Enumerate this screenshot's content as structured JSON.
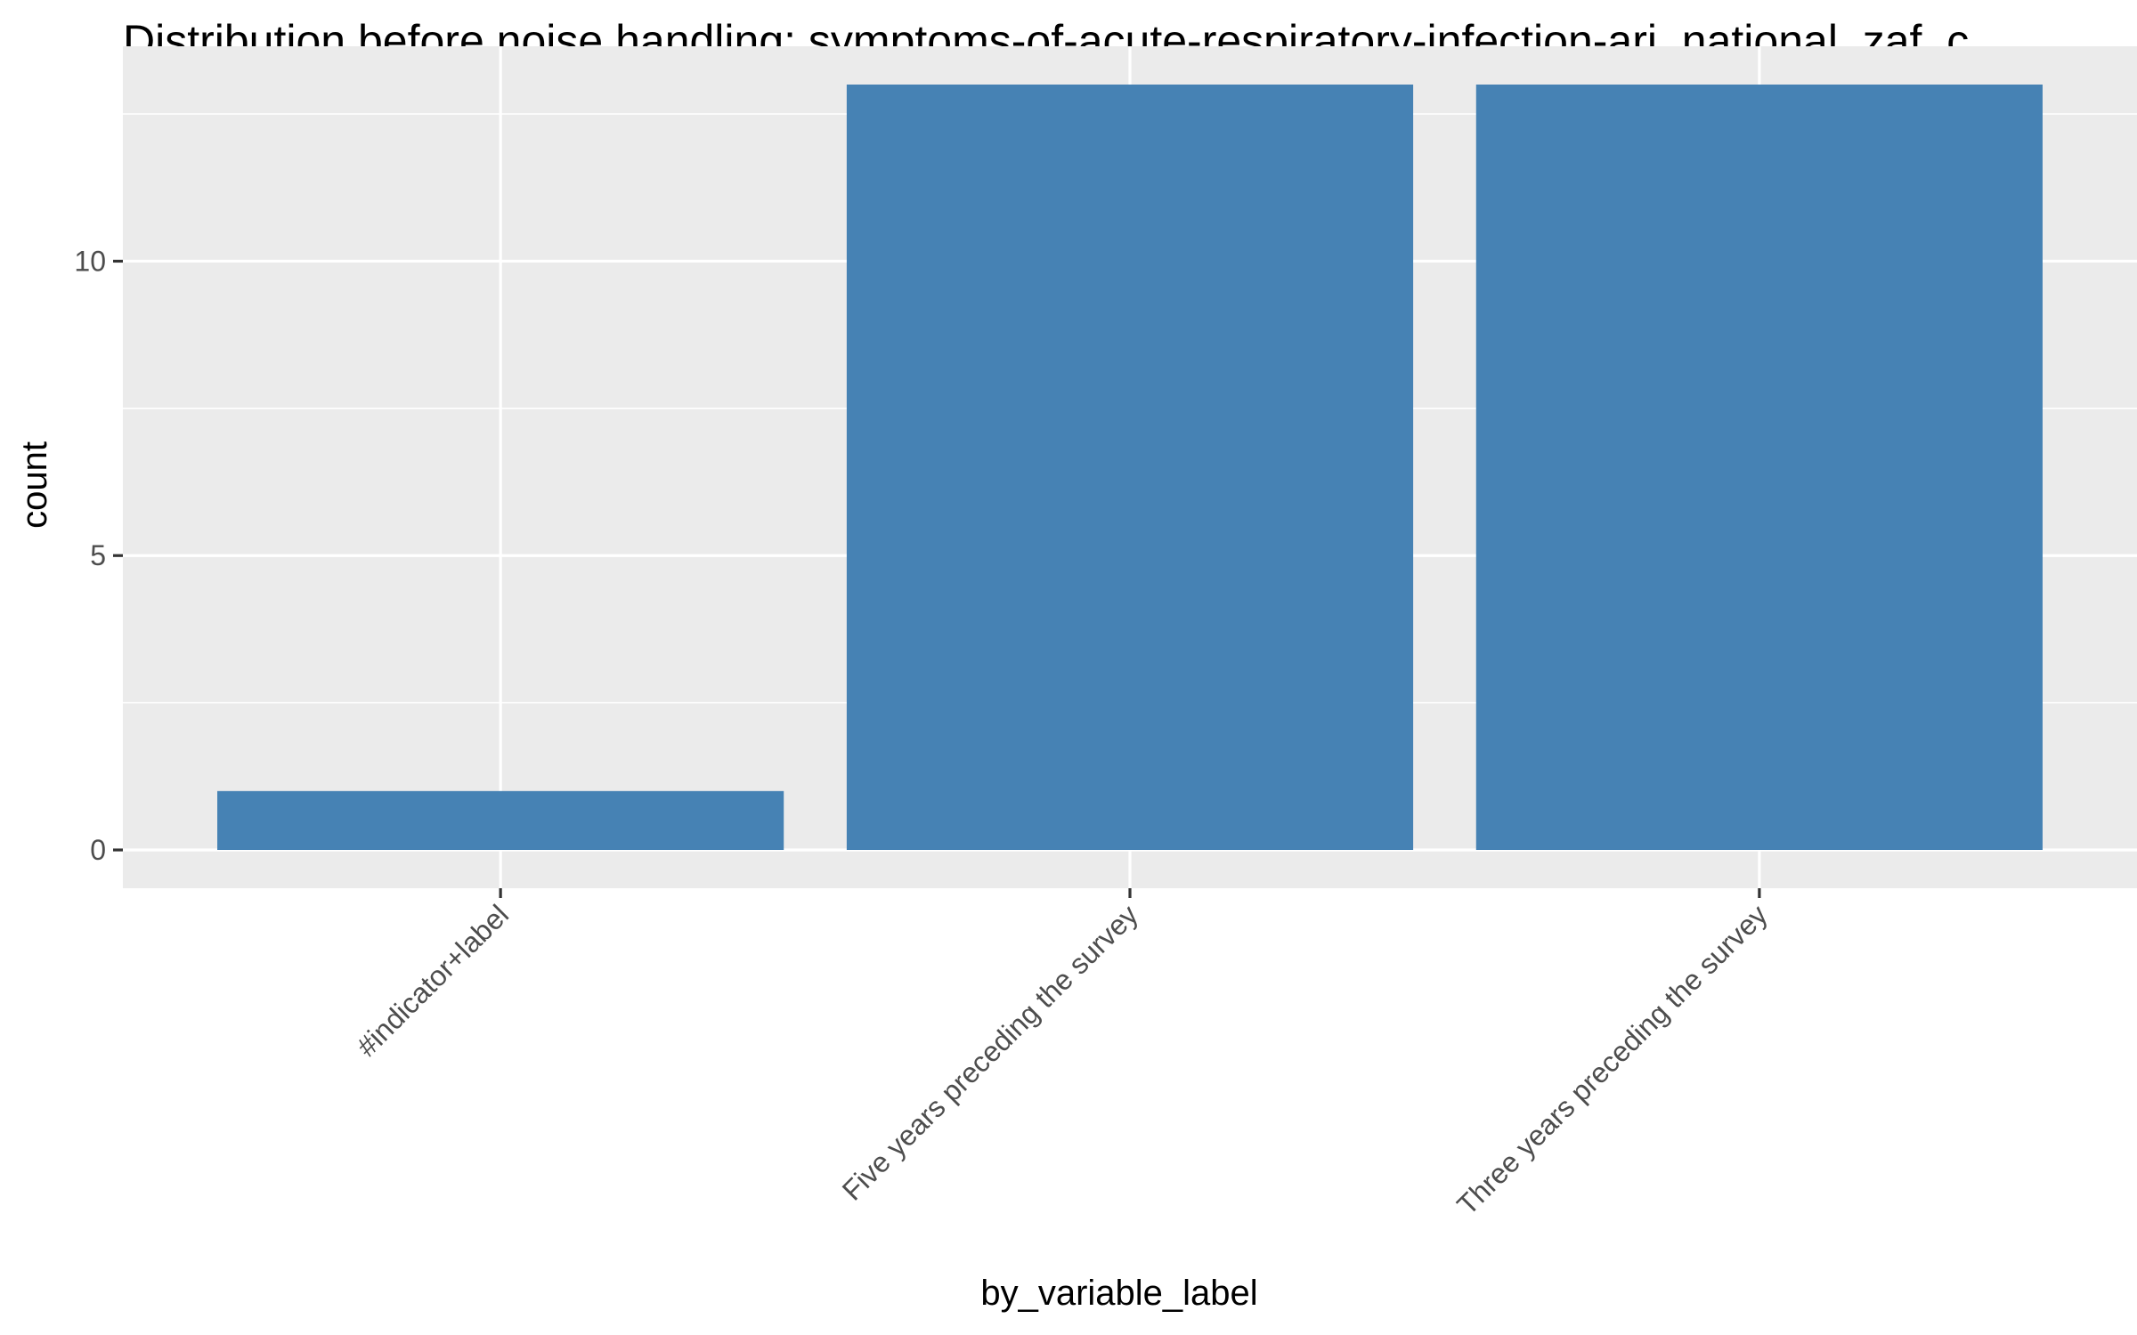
{
  "chart_data": {
    "type": "bar",
    "title": "Distribution before noise handling: symptoms-of-acute-respiratory-infection-ari_national_zaf_c",
    "xlabel": "by_variable_label",
    "ylabel": "count",
    "categories": [
      "#indicator+label",
      "Five years preceding the survey",
      "Three years preceding the survey"
    ],
    "values": [
      1,
      13,
      13
    ],
    "ylim": [
      -0.65,
      13.65
    ],
    "yticks": [
      0,
      5,
      10
    ],
    "ytick_labels": [
      "0",
      "5",
      "10"
    ],
    "grid": true,
    "bar_color": "#4682b4",
    "panel_background": "#ebebeb",
    "gridline_color": "#ffffff"
  }
}
